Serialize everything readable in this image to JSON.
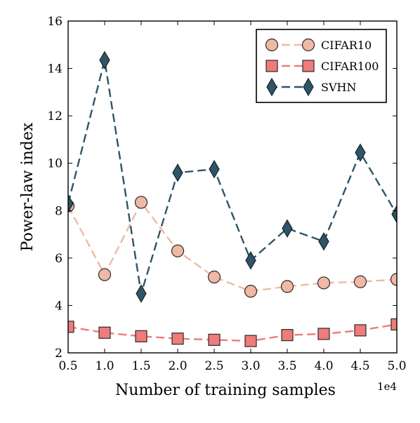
{
  "chart_data": {
    "type": "line",
    "xlabel": "Number of training samples",
    "ylabel": "Power-law index",
    "x_offset_label": "1e4",
    "x": [
      0.5,
      1.0,
      1.5,
      2.0,
      2.5,
      3.0,
      3.5,
      4.0,
      4.5,
      5.0
    ],
    "xlim": [
      0.5,
      5.0
    ],
    "ylim": [
      2,
      16
    ],
    "xticks": [
      "0.5",
      "1.0",
      "1.5",
      "2.0",
      "2.5",
      "3.0",
      "3.5",
      "4.0",
      "4.5",
      "5.0"
    ],
    "yticks": [
      "2",
      "4",
      "6",
      "8",
      "10",
      "12",
      "14",
      "16"
    ],
    "grid": false,
    "legend_position": "top-right",
    "series": [
      {
        "name": "CIFAR10",
        "marker": "circle",
        "color": "#efb9a5",
        "stroke": "#2a2a2a",
        "values": [
          8.2,
          5.3,
          8.35,
          6.3,
          5.2,
          4.6,
          4.8,
          4.95,
          5.0,
          5.1
        ]
      },
      {
        "name": "CIFAR100",
        "marker": "square",
        "color": "#ef7b7b",
        "stroke": "#2a2a2a",
        "values": [
          3.1,
          2.85,
          2.7,
          2.6,
          2.55,
          2.5,
          2.75,
          2.8,
          2.95,
          3.2
        ]
      },
      {
        "name": "SVHN",
        "marker": "diamond",
        "color": "#2f5566",
        "stroke": "#14232b",
        "values": [
          8.3,
          14.35,
          4.5,
          9.6,
          9.75,
          5.9,
          7.25,
          6.7,
          10.45,
          7.85
        ]
      }
    ]
  }
}
